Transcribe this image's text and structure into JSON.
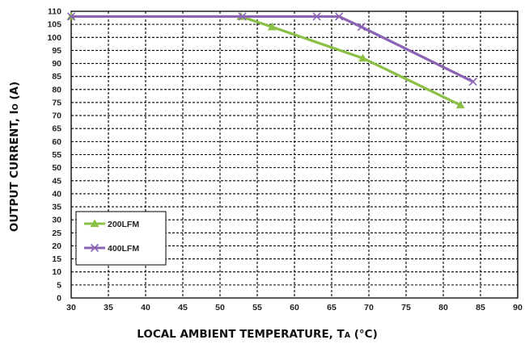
{
  "chart_data": {
    "type": "line",
    "xlabel": "LOCAL AMBIENT TEMPERATURE, TA (°C)",
    "xlabel_main": "LOCAL AMBIENT TEMPERATURE, T",
    "xlabel_sub": "A",
    "xlabel_unit": " (°C)",
    "ylabel": "OUTPUT CURRENT, Io (A)",
    "ylabel_main": "OUTPUT CURRENT, I",
    "ylabel_sub": "O",
    "ylabel_unit": " (A)",
    "xlim": [
      30,
      90
    ],
    "ylim": [
      0,
      110
    ],
    "xticks": [
      30,
      35,
      40,
      45,
      50,
      55,
      60,
      65,
      70,
      75,
      80,
      85,
      90
    ],
    "yticks": [
      0,
      5,
      10,
      15,
      20,
      25,
      30,
      35,
      40,
      45,
      50,
      55,
      60,
      65,
      70,
      75,
      80,
      85,
      90,
      95,
      100,
      105,
      110
    ],
    "grid": true,
    "legend_position": "bottom-left",
    "series": [
      {
        "name": "200LFM",
        "color": "#8bbf45",
        "marker": "triangle",
        "x": [
          30,
          52.8,
          57,
          69.2,
          82.3
        ],
        "y": [
          108,
          108,
          104,
          92,
          74
        ]
      },
      {
        "name": "400LFM",
        "color": "#8a63b5",
        "marker": "x",
        "x": [
          30,
          53,
          63,
          66,
          69,
          84
        ],
        "y": [
          108,
          108,
          108,
          108,
          104,
          83
        ]
      }
    ]
  }
}
